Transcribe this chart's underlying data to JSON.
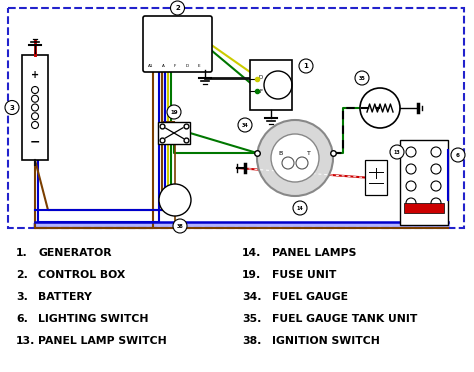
{
  "bg_color": "#ffffff",
  "border_color": "#2222cc",
  "legend_left": [
    [
      "1.",
      "GENERATOR"
    ],
    [
      "2.",
      "CONTROL BOX"
    ],
    [
      "3.",
      "BATTERY"
    ],
    [
      "6.",
      "LIGHTING SWITCH"
    ],
    [
      "13.",
      "PANEL LAMP SWITCH"
    ]
  ],
  "legend_right": [
    [
      "14.",
      "PANEL LAMPS"
    ],
    [
      "19.",
      "FUSE UNIT"
    ],
    [
      "34.",
      "FUEL GAUGE"
    ],
    [
      "35.",
      "FUEL GAUGE TANK UNIT"
    ],
    [
      "38.",
      "IGNITION SWITCH"
    ]
  ],
  "wire_colors": {
    "black": "#111111",
    "brown": "#7B3F00",
    "blue": "#0000cc",
    "yellow": "#cccc00",
    "green": "#007700",
    "red": "#cc0000",
    "gray": "#999999",
    "dark_blue_border": "#000077"
  }
}
